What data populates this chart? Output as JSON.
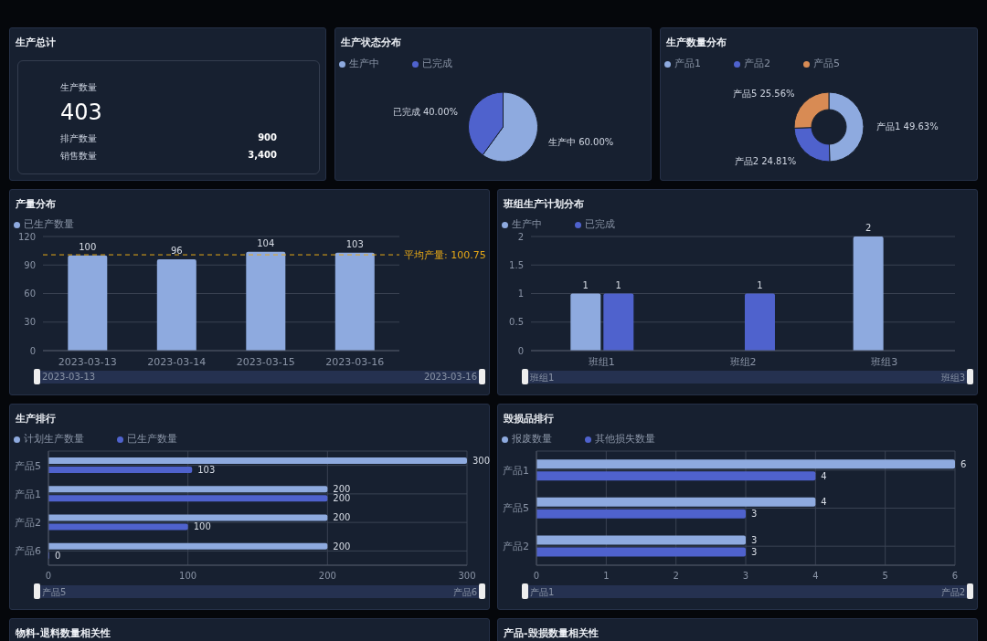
{
  "chart_data": [
    {
      "type": "other",
      "title": "生产总计",
      "annotations": [
        "生产数量",
        "403",
        "排产数量",
        "900",
        "销售数量",
        "3,400"
      ]
    },
    {
      "type": "pie",
      "title": "生产状态分布",
      "categories": [
        "生产中",
        "已完成"
      ],
      "values": [
        60,
        40
      ],
      "colors": [
        "#8eaadf",
        "#4f62cd"
      ],
      "value_labels": [
        "60.00%",
        "40.00%"
      ],
      "legend": "top left"
    },
    {
      "type": "donut",
      "title": "生产数量分布",
      "categories": [
        "产品1",
        "产品2",
        "产品5"
      ],
      "values": [
        49.63,
        24.81,
        25.56
      ],
      "colors": [
        "#8eaadf",
        "#4f62cd",
        "#d88b54"
      ],
      "value_labels": [
        "49.63%",
        "24.81%",
        "25.56%"
      ],
      "legend": "top left"
    },
    {
      "type": "bar",
      "title": "产量分布",
      "categories": [
        "2023-03-13",
        "2023-03-14",
        "2023-03-15",
        "2023-03-16"
      ],
      "series": [
        {
          "name": "已生产数量",
          "color": "#8eaadf",
          "values": [
            100,
            96,
            104,
            103
          ]
        }
      ],
      "ylim": [
        0,
        120
      ],
      "yticks": [
        0,
        30,
        60,
        90,
        120
      ],
      "grid": "y",
      "data_labels": true,
      "legend": "top left",
      "ref_lines": [
        {
          "axis": "y",
          "value": 100.75,
          "label": "平均产量: 100.75",
          "color": "#e6a817",
          "line_style": "dashed"
        }
      ],
      "annotations": [
        "2023-03-13",
        "2023-03-16"
      ]
    },
    {
      "type": "bar",
      "title": "班组生产计划分布",
      "categories": [
        "班组1",
        "班组2",
        "班组3"
      ],
      "series": [
        {
          "name": "生产中",
          "color": "#8eaadf",
          "values": [
            1,
            null,
            2
          ]
        },
        {
          "name": "已完成",
          "color": "#4f62cd",
          "values": [
            1,
            1,
            null
          ]
        }
      ],
      "ylim": [
        0,
        2
      ],
      "yticks": [
        0,
        0.5,
        1,
        1.5,
        2
      ],
      "grid": "y",
      "data_labels": true,
      "legend": "top left",
      "annotations": [
        "班组1",
        "班组3"
      ]
    },
    {
      "type": "bar",
      "orientation": "horizontal",
      "title": "生产排行",
      "categories": [
        "产品5",
        "产品1",
        "产品2",
        "产品6"
      ],
      "series": [
        {
          "name": "计划生产数量",
          "color": "#8eaadf",
          "values": [
            300,
            200,
            200,
            200
          ]
        },
        {
          "name": "已生产数量",
          "color": "#4f62cd",
          "values": [
            103,
            200,
            100,
            0
          ]
        }
      ],
      "xlim": [
        0,
        300
      ],
      "xticks": [
        0,
        100,
        200,
        300
      ],
      "grid": true,
      "data_labels": true,
      "legend": "top left",
      "annotations": [
        "产品5",
        "产品6"
      ]
    },
    {
      "type": "bar",
      "orientation": "horizontal",
      "title": "毁损品排行",
      "categories": [
        "产品1",
        "产品5",
        "产品2"
      ],
      "series": [
        {
          "name": "报废数量",
          "color": "#8eaadf",
          "values": [
            6,
            4,
            3
          ]
        },
        {
          "name": "其他损失数量",
          "color": "#4f62cd",
          "values": [
            4,
            3,
            3
          ]
        }
      ],
      "xlim": [
        0,
        6
      ],
      "xticks": [
        0,
        1,
        2,
        3,
        4,
        5,
        6
      ],
      "grid": true,
      "data_labels": true,
      "legend": "top left",
      "annotations": [
        "产品1",
        "产品2"
      ]
    },
    {
      "type": "other",
      "title": "物料-退料数量相关性"
    },
    {
      "type": "other",
      "title": "产品-毁损数量相关性"
    }
  ]
}
